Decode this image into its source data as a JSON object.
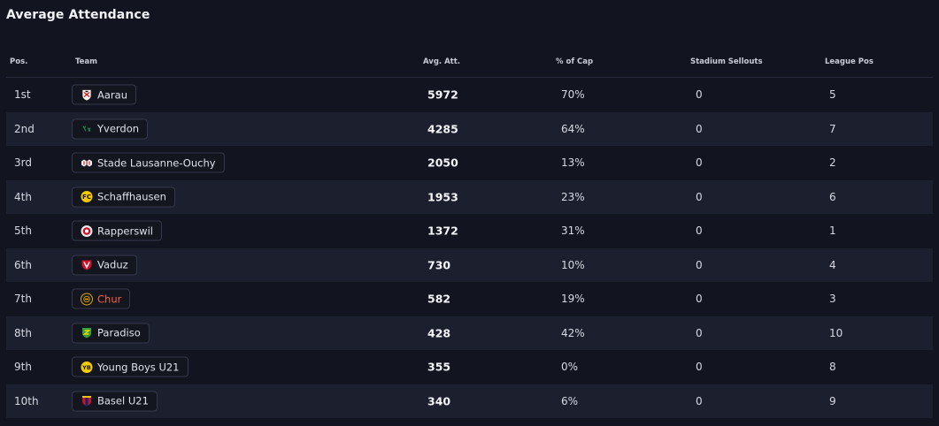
{
  "title": "Average Attendance",
  "columns": {
    "pos": "Pos.",
    "team": "Team",
    "avg_att": "Avg. Att.",
    "pct_cap": "% of Cap",
    "sellouts": "Stadium Sellouts",
    "league_pos": "League Pos"
  },
  "rows": [
    {
      "pos": "1st",
      "team": "Aarau",
      "crest": "aarau-crest-icon",
      "avg_att": "5972",
      "pct_cap": "70%",
      "sellouts": "0",
      "league_pos": "5"
    },
    {
      "pos": "2nd",
      "team": "Yverdon",
      "crest": "yverdon-crest-icon",
      "avg_att": "4285",
      "pct_cap": "64%",
      "sellouts": "0",
      "league_pos": "7"
    },
    {
      "pos": "3rd",
      "team": "Stade Lausanne-Ouchy",
      "crest": "stade-lausanne-ouchy-crest-icon",
      "avg_att": "2050",
      "pct_cap": "13%",
      "sellouts": "0",
      "league_pos": "2"
    },
    {
      "pos": "4th",
      "team": "Schaffhausen",
      "crest": "schaffhausen-crest-icon",
      "avg_att": "1953",
      "pct_cap": "23%",
      "sellouts": "0",
      "league_pos": "6"
    },
    {
      "pos": "5th",
      "team": "Rapperswil",
      "crest": "rapperswil-crest-icon",
      "avg_att": "1372",
      "pct_cap": "31%",
      "sellouts": "0",
      "league_pos": "1"
    },
    {
      "pos": "6th",
      "team": "Vaduz",
      "crest": "vaduz-crest-icon",
      "avg_att": "730",
      "pct_cap": "10%",
      "sellouts": "0",
      "league_pos": "4"
    },
    {
      "pos": "7th",
      "team": "Chur",
      "crest": "chur-crest-icon",
      "avg_att": "582",
      "pct_cap": "19%",
      "sellouts": "0",
      "league_pos": "3",
      "highlight_color": "#f0643c"
    },
    {
      "pos": "8th",
      "team": "Paradiso",
      "crest": "paradiso-crest-icon",
      "avg_att": "428",
      "pct_cap": "42%",
      "sellouts": "0",
      "league_pos": "10"
    },
    {
      "pos": "9th",
      "team": "Young Boys U21",
      "crest": "young-boys-u21-crest-icon",
      "avg_att": "355",
      "pct_cap": "0%",
      "sellouts": "0",
      "league_pos": "8"
    },
    {
      "pos": "10th",
      "team": "Basel U21",
      "crest": "basel-u21-crest-icon",
      "avg_att": "340",
      "pct_cap": "6%",
      "sellouts": "0",
      "league_pos": "9"
    }
  ],
  "colors": {
    "background": "#12141f",
    "row_alt": "#1c1f2e",
    "highlight": "#f0643c"
  }
}
